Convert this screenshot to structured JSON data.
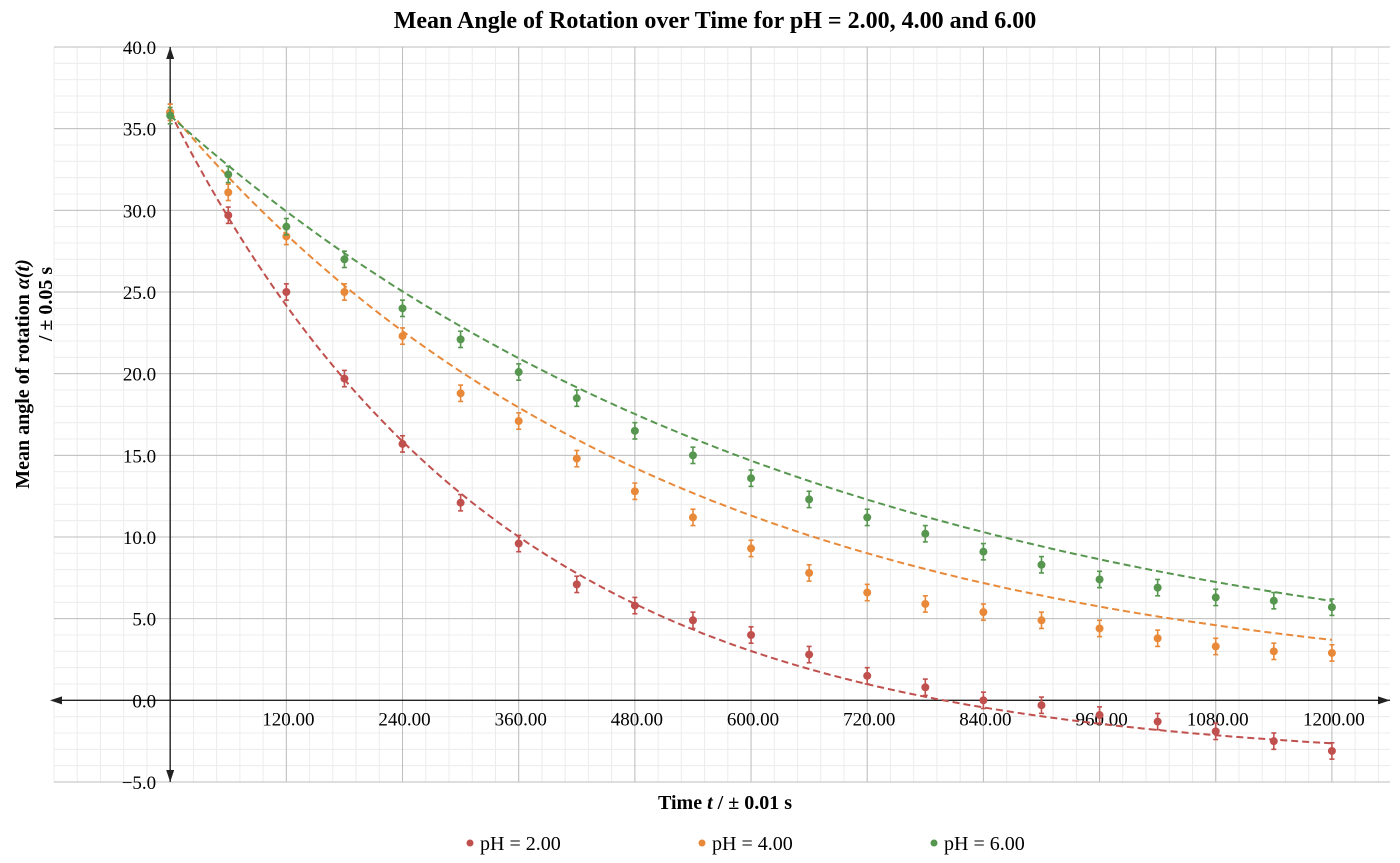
{
  "chart_data": {
    "type": "scatter",
    "title": "Mean Angle of Rotation over Time for pH = 2.00, 4.00 and 6.00",
    "xlabel_parts": [
      "Time ",
      "t",
      " / ± 0.01 s"
    ],
    "ylabel_line1_parts": [
      "Mean angle of rotation ",
      "α(t)"
    ],
    "ylabel_line2": "/ ± 0.05 s",
    "xlim": [
      -120,
      1260
    ],
    "ylim": [
      -5,
      40
    ],
    "x_ticks": [
      {
        "v": 120,
        "label": "120.00"
      },
      {
        "v": 240,
        "label": "240.00"
      },
      {
        "v": 360,
        "label": "360.00"
      },
      {
        "v": 480,
        "label": "480.00"
      },
      {
        "v": 600,
        "label": "600.00"
      },
      {
        "v": 720,
        "label": "720.00"
      },
      {
        "v": 840,
        "label": "840.00"
      },
      {
        "v": 960,
        "label": "960.00"
      },
      {
        "v": 1080,
        "label": "1080.00"
      },
      {
        "v": 1200,
        "label": "1200.00"
      }
    ],
    "y_ticks": [
      {
        "v": 40,
        "label": "40.0"
      },
      {
        "v": 35,
        "label": "35.0"
      },
      {
        "v": 30,
        "label": "30.0"
      },
      {
        "v": 25,
        "label": "25.0"
      },
      {
        "v": 20,
        "label": "20.0"
      },
      {
        "v": 15,
        "label": "15.0"
      },
      {
        "v": 10,
        "label": "10.0"
      },
      {
        "v": 5,
        "label": "5.0"
      },
      {
        "v": 0,
        "label": "0.0"
      },
      {
        "v": -5,
        "label": "−5.0"
      }
    ],
    "grid": true,
    "error_bar": 0.5,
    "legend_position": "bottom-center",
    "x": [
      0,
      60,
      120,
      180,
      240,
      300,
      360,
      420,
      480,
      540,
      600,
      660,
      720,
      780,
      840,
      900,
      960,
      1020,
      1080,
      1140,
      1200
    ],
    "series": [
      {
        "name": "pH = 2.00",
        "color": "#c0504d",
        "values": [
          36.0,
          29.7,
          25.0,
          19.7,
          15.7,
          12.1,
          9.6,
          7.1,
          5.8,
          4.9,
          4.0,
          2.8,
          1.5,
          0.8,
          0.0,
          -0.3,
          -0.9,
          -1.3,
          -1.9,
          -2.5,
          -3.1
        ],
        "fit": {
          "a": 39.8,
          "k": 0.00294,
          "c": -3.8
        }
      },
      {
        "name": "pH = 4.00",
        "color": "#e8893a",
        "values": [
          36.0,
          31.1,
          28.4,
          25.0,
          22.3,
          18.8,
          17.1,
          14.8,
          12.8,
          11.2,
          9.3,
          7.8,
          6.6,
          5.9,
          5.4,
          4.9,
          4.4,
          3.8,
          3.3,
          3.0,
          2.9
        ],
        "fit": {
          "a": 35.7,
          "k": 0.00196,
          "c": 0.3
        }
      },
      {
        "name": "pH = 6.00",
        "color": "#56964f",
        "values": [
          35.8,
          32.2,
          29.0,
          27.0,
          24.0,
          22.1,
          20.1,
          18.5,
          16.5,
          15.0,
          13.6,
          12.3,
          11.2,
          10.2,
          9.1,
          8.3,
          7.4,
          6.9,
          6.3,
          6.1,
          5.7
        ],
        "fit": {
          "a": 35.6,
          "k": 0.0015,
          "c": 0.2
        }
      }
    ]
  }
}
